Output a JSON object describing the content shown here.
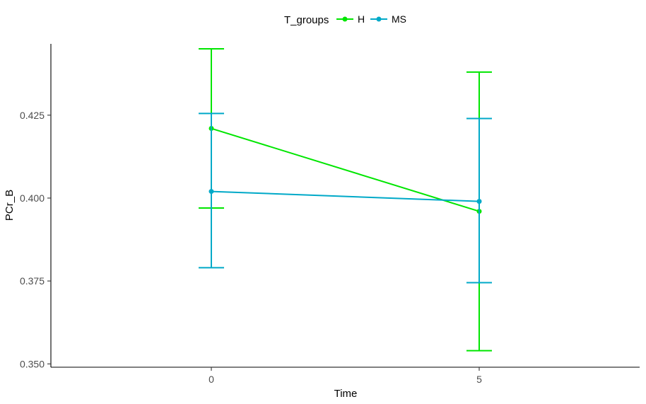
{
  "chart_data": {
    "type": "line",
    "xlabel": "Time",
    "ylabel": "PCr_B",
    "x_categories": [
      "0",
      "5"
    ],
    "ylim": [
      0.349,
      0.4465
    ],
    "y_ticks": [
      0.35,
      0.375,
      0.4,
      0.425
    ],
    "y_tick_labels": [
      "0.350",
      "0.375",
      "0.400",
      "0.425"
    ],
    "grid": false,
    "legend": {
      "title": "T_groups",
      "position": "top"
    },
    "series": [
      {
        "name": "H",
        "color": "#00e600",
        "values": [
          0.421,
          0.396
        ],
        "error_low": [
          0.397,
          0.354
        ],
        "error_high": [
          0.445,
          0.438
        ]
      },
      {
        "name": "MS",
        "color": "#00a9c8",
        "values": [
          0.402,
          0.399
        ],
        "error_low": [
          0.379,
          0.3745
        ],
        "error_high": [
          0.4255,
          0.424
        ]
      }
    ]
  }
}
